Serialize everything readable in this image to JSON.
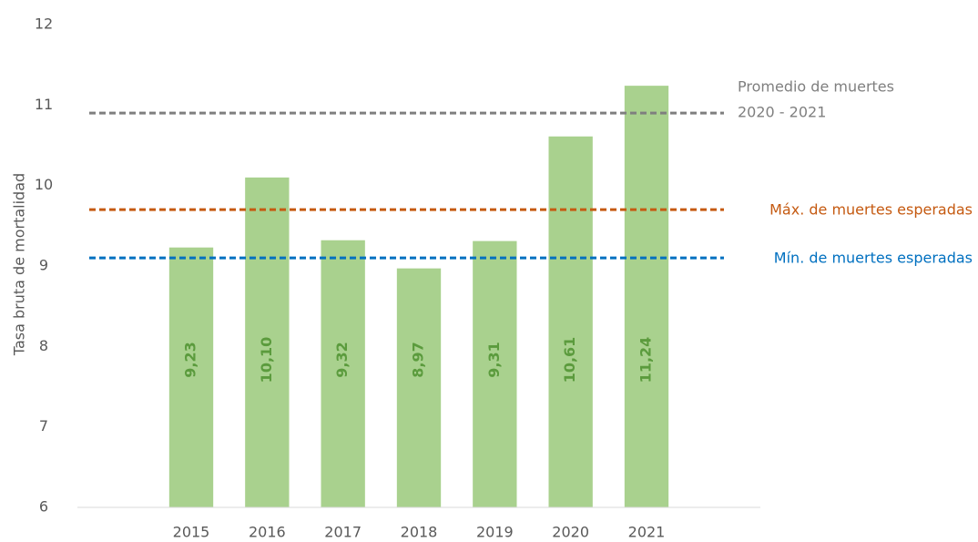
{
  "chart_data": {
    "type": "bar",
    "y_label": "Tasa bruta de mortalidad",
    "categories": [
      null,
      "2015",
      "2016",
      "2017",
      "2018",
      "2019",
      "2020",
      "2021",
      null
    ],
    "values": [
      null,
      9.23,
      10.1,
      9.32,
      8.97,
      9.31,
      10.61,
      11.24,
      null
    ],
    "value_labels": [
      null,
      "9,23",
      "10,10",
      "9,32",
      "8,97",
      "9,31",
      "10,61",
      "11,24",
      null
    ],
    "color": "#a9d18e",
    "label_color": "#5b9b3d",
    "ylim": [
      6,
      12
    ],
    "yticks": [
      6,
      7,
      8,
      9,
      10,
      11,
      12
    ],
    "grid": false,
    "reference_lines": [
      {
        "label_lines": [
          "Promedio de muertes",
          "2020 - 2021"
        ],
        "value": 10.9,
        "color": "#7f7f7f"
      },
      {
        "label_lines": [
          "Máx. de muertes esperadas"
        ],
        "value": 9.7,
        "color": "#c55a11"
      },
      {
        "label_lines": [
          "Mín. de muertes esperadas"
        ],
        "value": 9.1,
        "color": "#0070c0"
      }
    ]
  }
}
